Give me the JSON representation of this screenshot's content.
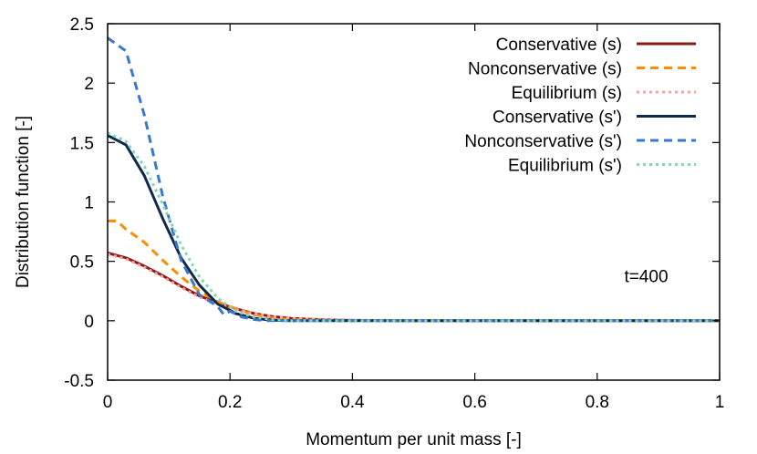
{
  "chart_data": {
    "type": "line",
    "xlabel": "Momentum per unit mass [-]",
    "ylabel": "Distribution function [-]",
    "xlim": [
      0,
      1
    ],
    "ylim": [
      -0.5,
      2.5
    ],
    "xticks": [
      0,
      0.2,
      0.4,
      0.6,
      0.8,
      1
    ],
    "xtick_labels": [
      "0",
      "0.2",
      "0.4",
      "0.6",
      "0.8",
      "1"
    ],
    "yticks": [
      -0.5,
      0,
      0.5,
      1,
      1.5,
      2,
      2.5
    ],
    "ytick_labels": [
      "-0.5",
      "0",
      "0.5",
      "1",
      "1.5",
      "2",
      "2.5"
    ],
    "grid": false,
    "legend_position": "top-right",
    "annotation": {
      "text": "t=400",
      "x": 0.88,
      "y": 0.38
    },
    "series": [
      {
        "name": "Conservative (s)",
        "color": "#8b1a1a",
        "dash": "solid",
        "x": [
          0,
          0.03,
          0.06,
          0.09,
          0.12,
          0.15,
          0.18,
          0.21,
          0.24,
          0.27,
          0.3,
          0.35,
          0.4,
          0.5,
          0.6,
          0.8,
          1.0
        ],
        "y": [
          0.57,
          0.53,
          0.46,
          0.38,
          0.29,
          0.21,
          0.15,
          0.1,
          0.06,
          0.035,
          0.02,
          0.008,
          0.003,
          0.0,
          0.0,
          0.0,
          0.0
        ]
      },
      {
        "name": "Nonconservative (s)",
        "color": "#ff8c00",
        "dash": "dashed",
        "x": [
          0,
          0.015,
          0.03,
          0.06,
          0.09,
          0.12,
          0.15,
          0.18,
          0.21,
          0.24,
          0.27,
          0.3,
          0.35,
          0.4,
          0.5,
          0.6,
          0.8,
          1.0
        ],
        "y": [
          0.84,
          0.84,
          0.77,
          0.66,
          0.51,
          0.37,
          0.25,
          0.16,
          0.1,
          0.05,
          0.025,
          0.01,
          0.003,
          0.0,
          0.0,
          0.0,
          0.0,
          0.0
        ]
      },
      {
        "name": "Equilibrium (s)",
        "color": "#f4a6a0",
        "dash": "dotted",
        "x": [
          0,
          0.03,
          0.06,
          0.09,
          0.12,
          0.15,
          0.18,
          0.21,
          0.24,
          0.27,
          0.3,
          0.35,
          0.4,
          0.5,
          0.6,
          0.8,
          1.0
        ],
        "y": [
          0.56,
          0.52,
          0.45,
          0.37,
          0.28,
          0.2,
          0.14,
          0.095,
          0.06,
          0.035,
          0.02,
          0.008,
          0.003,
          0.0,
          0.0,
          0.0,
          0.0
        ]
      },
      {
        "name": "Conservative (s')",
        "color": "#0f2a4a",
        "dash": "solid",
        "x": [
          0,
          0.03,
          0.06,
          0.09,
          0.12,
          0.15,
          0.18,
          0.21,
          0.24,
          0.27,
          0.3,
          0.4,
          0.6,
          0.8,
          1.0
        ],
        "y": [
          1.56,
          1.48,
          1.22,
          0.86,
          0.53,
          0.3,
          0.14,
          0.06,
          0.02,
          0.005,
          0.0,
          0.0,
          0.0,
          0.0,
          0.0
        ]
      },
      {
        "name": "Nonconservative (s')",
        "color": "#3a78c9",
        "dash": "dashed",
        "x": [
          0,
          0.03,
          0.06,
          0.09,
          0.12,
          0.15,
          0.18,
          0.19,
          0.2,
          0.22,
          0.24,
          0.26,
          0.3,
          0.4,
          0.6,
          0.8,
          1.0
        ],
        "y": [
          2.38,
          2.27,
          1.73,
          1.05,
          0.51,
          0.22,
          0.12,
          0.05,
          0.08,
          0.03,
          0.01,
          0.0,
          0.0,
          0.0,
          0.0,
          0.0,
          0.0
        ]
      },
      {
        "name": "Equilibrium (s')",
        "color": "#7fd8b8",
        "dash": "dotted",
        "x": [
          0,
          0.03,
          0.06,
          0.09,
          0.12,
          0.15,
          0.18,
          0.21,
          0.24,
          0.27,
          0.3,
          0.4,
          0.6,
          0.8,
          1.0
        ],
        "y": [
          1.58,
          1.51,
          1.3,
          0.98,
          0.64,
          0.37,
          0.19,
          0.08,
          0.03,
          0.01,
          0.0,
          0.0,
          0.0,
          0.0,
          0.0
        ]
      }
    ]
  }
}
